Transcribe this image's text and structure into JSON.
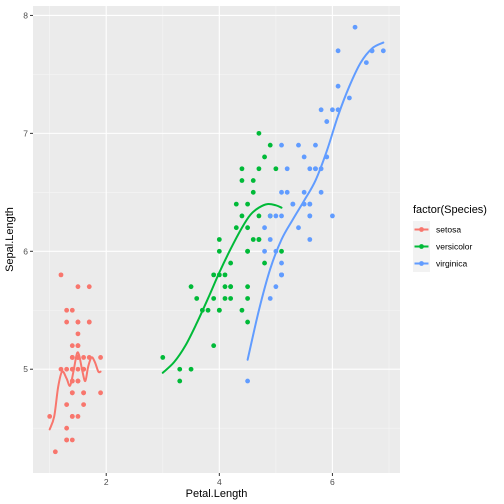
{
  "chart_data": {
    "type": "scatter",
    "xlabel": "Petal.Length",
    "ylabel": "Sepal.Length",
    "xlim": [
      0.705,
      7.195
    ],
    "ylim": [
      4.12,
      8.08
    ],
    "x_ticks": [
      2,
      4,
      6
    ],
    "y_ticks": [
      5,
      6,
      7,
      8
    ],
    "x_tick_labels": [
      "2",
      "4",
      "6"
    ],
    "y_tick_labels": [
      "5",
      "6",
      "7",
      "8"
    ],
    "legend": {
      "title": "factor(Species)",
      "position": "right"
    },
    "series": [
      {
        "name": "setosa",
        "color": "#F8766D",
        "points": [
          [
            1.4,
            5.1
          ],
          [
            1.4,
            4.9
          ],
          [
            1.3,
            4.7
          ],
          [
            1.5,
            4.6
          ],
          [
            1.4,
            5.0
          ],
          [
            1.7,
            5.4
          ],
          [
            1.4,
            4.6
          ],
          [
            1.5,
            5.0
          ],
          [
            1.4,
            4.4
          ],
          [
            1.5,
            4.9
          ],
          [
            1.5,
            5.4
          ],
          [
            1.6,
            4.8
          ],
          [
            1.4,
            4.8
          ],
          [
            1.1,
            4.3
          ],
          [
            1.2,
            5.8
          ],
          [
            1.5,
            5.7
          ],
          [
            1.3,
            5.4
          ],
          [
            1.4,
            5.1
          ],
          [
            1.7,
            5.7
          ],
          [
            1.5,
            5.1
          ],
          [
            1.7,
            5.4
          ],
          [
            1.5,
            5.1
          ],
          [
            1.0,
            4.6
          ],
          [
            1.7,
            5.1
          ],
          [
            1.9,
            4.8
          ],
          [
            1.6,
            5.0
          ],
          [
            1.6,
            5.0
          ],
          [
            1.5,
            5.2
          ],
          [
            1.4,
            5.2
          ],
          [
            1.6,
            4.7
          ],
          [
            1.6,
            4.8
          ],
          [
            1.5,
            5.4
          ],
          [
            1.5,
            5.2
          ],
          [
            1.4,
            5.5
          ],
          [
            1.5,
            4.9
          ],
          [
            1.2,
            5.0
          ],
          [
            1.3,
            5.5
          ],
          [
            1.4,
            4.9
          ],
          [
            1.3,
            4.4
          ],
          [
            1.5,
            5.1
          ],
          [
            1.3,
            5.0
          ],
          [
            1.3,
            4.5
          ],
          [
            1.3,
            4.4
          ],
          [
            1.6,
            5.0
          ],
          [
            1.9,
            5.1
          ],
          [
            1.4,
            4.8
          ],
          [
            1.6,
            5.1
          ],
          [
            1.4,
            4.6
          ],
          [
            1.5,
            5.3
          ],
          [
            1.4,
            5.0
          ]
        ],
        "smooth": [
          [
            1.0,
            4.49
          ],
          [
            1.08,
            4.6
          ],
          [
            1.15,
            4.85
          ],
          [
            1.22,
            4.98
          ],
          [
            1.3,
            4.92
          ],
          [
            1.36,
            4.86
          ],
          [
            1.42,
            4.98
          ],
          [
            1.48,
            5.13
          ],
          [
            1.52,
            5.12
          ],
          [
            1.58,
            4.98
          ],
          [
            1.63,
            4.9
          ],
          [
            1.68,
            5.02
          ],
          [
            1.74,
            5.1
          ],
          [
            1.8,
            5.06
          ],
          [
            1.86,
            4.98
          ],
          [
            1.9,
            4.98
          ]
        ]
      },
      {
        "name": "versicolor",
        "color": "#00BA38",
        "points": [
          [
            4.7,
            7.0
          ],
          [
            4.5,
            6.4
          ],
          [
            4.9,
            6.9
          ],
          [
            4.0,
            5.5
          ],
          [
            4.6,
            6.5
          ],
          [
            4.5,
            5.7
          ],
          [
            4.7,
            6.3
          ],
          [
            3.3,
            4.9
          ],
          [
            4.6,
            6.6
          ],
          [
            3.9,
            5.2
          ],
          [
            3.5,
            5.0
          ],
          [
            4.2,
            5.9
          ],
          [
            4.0,
            6.0
          ],
          [
            4.7,
            6.1
          ],
          [
            3.6,
            5.6
          ],
          [
            4.4,
            6.7
          ],
          [
            4.5,
            5.6
          ],
          [
            4.1,
            5.8
          ],
          [
            4.5,
            6.2
          ],
          [
            3.9,
            5.6
          ],
          [
            4.8,
            5.9
          ],
          [
            4.0,
            6.1
          ],
          [
            4.9,
            6.3
          ],
          [
            4.7,
            6.1
          ],
          [
            4.3,
            6.4
          ],
          [
            4.4,
            6.6
          ],
          [
            4.8,
            6.8
          ],
          [
            5.0,
            6.7
          ],
          [
            4.5,
            6.0
          ],
          [
            3.5,
            5.7
          ],
          [
            3.8,
            5.5
          ],
          [
            3.7,
            5.5
          ],
          [
            3.9,
            5.8
          ],
          [
            5.1,
            6.0
          ],
          [
            4.5,
            5.4
          ],
          [
            4.5,
            6.0
          ],
          [
            4.7,
            6.7
          ],
          [
            4.4,
            6.3
          ],
          [
            4.1,
            5.6
          ],
          [
            4.0,
            5.5
          ],
          [
            4.4,
            5.5
          ],
          [
            4.6,
            6.1
          ],
          [
            4.0,
            5.8
          ],
          [
            3.3,
            5.0
          ],
          [
            4.2,
            5.6
          ],
          [
            4.2,
            5.7
          ],
          [
            4.2,
            5.7
          ],
          [
            4.3,
            6.2
          ],
          [
            3.0,
            5.1
          ],
          [
            4.1,
            5.7
          ]
        ],
        "smooth": [
          [
            3.0,
            4.97
          ],
          [
            3.2,
            5.06
          ],
          [
            3.4,
            5.2
          ],
          [
            3.6,
            5.39
          ],
          [
            3.8,
            5.6
          ],
          [
            4.0,
            5.82
          ],
          [
            4.2,
            6.02
          ],
          [
            4.4,
            6.2
          ],
          [
            4.55,
            6.31
          ],
          [
            4.7,
            6.37
          ],
          [
            4.85,
            6.4
          ],
          [
            5.0,
            6.39
          ],
          [
            5.1,
            6.37
          ]
        ]
      },
      {
        "name": "virginica",
        "color": "#619CFF",
        "points": [
          [
            6.0,
            6.3
          ],
          [
            5.1,
            5.8
          ],
          [
            5.9,
            7.1
          ],
          [
            5.6,
            6.3
          ],
          [
            5.8,
            6.5
          ],
          [
            6.6,
            7.6
          ],
          [
            4.5,
            4.9
          ],
          [
            6.3,
            7.3
          ],
          [
            5.8,
            6.7
          ],
          [
            6.1,
            7.2
          ],
          [
            5.1,
            6.5
          ],
          [
            5.3,
            6.4
          ],
          [
            5.5,
            6.8
          ],
          [
            5.0,
            5.7
          ],
          [
            5.1,
            5.8
          ],
          [
            5.3,
            6.4
          ],
          [
            5.5,
            6.5
          ],
          [
            6.7,
            7.7
          ],
          [
            6.9,
            7.7
          ],
          [
            5.0,
            6.0
          ],
          [
            5.7,
            6.9
          ],
          [
            4.9,
            5.6
          ],
          [
            6.7,
            7.7
          ],
          [
            4.9,
            6.3
          ],
          [
            5.7,
            6.7
          ],
          [
            6.0,
            7.2
          ],
          [
            4.8,
            6.2
          ],
          [
            4.9,
            6.1
          ],
          [
            5.6,
            6.4
          ],
          [
            5.8,
            7.2
          ],
          [
            6.1,
            7.4
          ],
          [
            6.4,
            7.9
          ],
          [
            5.6,
            6.4
          ],
          [
            5.1,
            6.3
          ],
          [
            5.6,
            6.1
          ],
          [
            6.1,
            7.7
          ],
          [
            5.6,
            6.3
          ],
          [
            5.5,
            6.4
          ],
          [
            4.8,
            6.0
          ],
          [
            5.4,
            6.9
          ],
          [
            5.6,
            6.7
          ],
          [
            5.1,
            6.9
          ],
          [
            5.1,
            5.8
          ],
          [
            5.9,
            6.8
          ],
          [
            5.7,
            6.7
          ],
          [
            5.2,
            6.7
          ],
          [
            5.0,
            6.3
          ],
          [
            5.2,
            6.5
          ],
          [
            5.4,
            6.2
          ],
          [
            5.1,
            5.9
          ]
        ],
        "smooth": [
          [
            4.5,
            5.08
          ],
          [
            4.7,
            5.5
          ],
          [
            4.9,
            5.85
          ],
          [
            5.1,
            6.1
          ],
          [
            5.3,
            6.27
          ],
          [
            5.5,
            6.43
          ],
          [
            5.7,
            6.6
          ],
          [
            5.9,
            6.85
          ],
          [
            6.1,
            7.15
          ],
          [
            6.3,
            7.4
          ],
          [
            6.5,
            7.6
          ],
          [
            6.7,
            7.72
          ],
          [
            6.9,
            7.77
          ]
        ]
      }
    ]
  }
}
